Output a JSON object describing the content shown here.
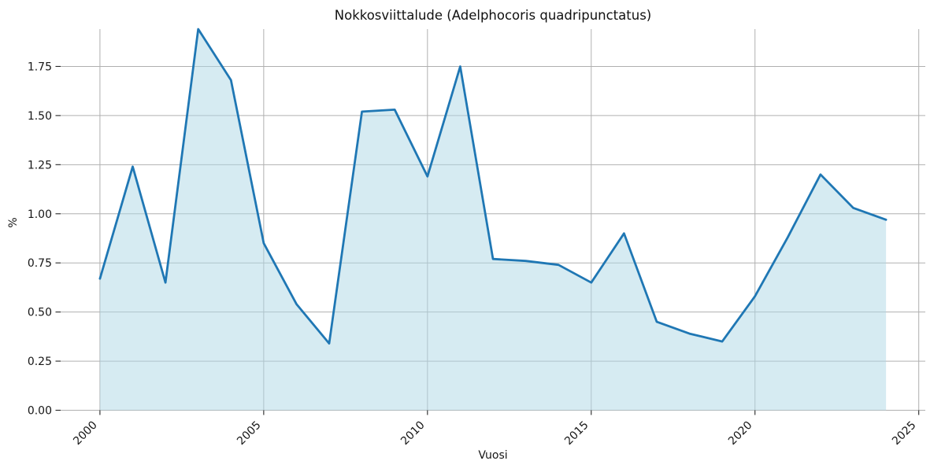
{
  "chart_data": {
    "type": "area",
    "title": "Nokkosviittalude (Adelphocoris quadripunctatus)",
    "xlabel": "Vuosi",
    "ylabel": "%",
    "x": [
      2000,
      2001,
      2002,
      2003,
      2004,
      2005,
      2006,
      2007,
      2008,
      2009,
      2010,
      2011,
      2012,
      2013,
      2014,
      2015,
      2016,
      2017,
      2018,
      2019,
      2020,
      2021,
      2022,
      2023,
      2024
    ],
    "values": [
      0.67,
      1.24,
      0.65,
      1.94,
      1.68,
      0.85,
      0.54,
      0.34,
      1.52,
      1.53,
      1.19,
      1.75,
      0.77,
      0.76,
      0.74,
      0.65,
      0.9,
      0.45,
      0.39,
      0.35,
      0.58,
      0.88,
      1.2,
      1.03,
      0.97
    ],
    "xticks": [
      2000,
      2005,
      2010,
      2015,
      2020,
      2025
    ],
    "yticks": [
      0,
      0.25,
      0.5,
      0.75,
      1.0,
      1.25,
      1.5,
      1.75
    ],
    "ytick_labels": [
      "0.00",
      "0.25",
      "0.50",
      "0.75",
      "1.00",
      "1.25",
      "1.50",
      "1.75"
    ],
    "xlim": [
      1998.8,
      2025.2
    ],
    "ylim": [
      0,
      1.94
    ],
    "grid": true,
    "legend": "none",
    "colors": {
      "line": "#1f77b4",
      "fill": "rgba(173,216,230,0.5)",
      "grid": "#b0b0b0",
      "tick": "#262626",
      "text": "#161616"
    }
  }
}
